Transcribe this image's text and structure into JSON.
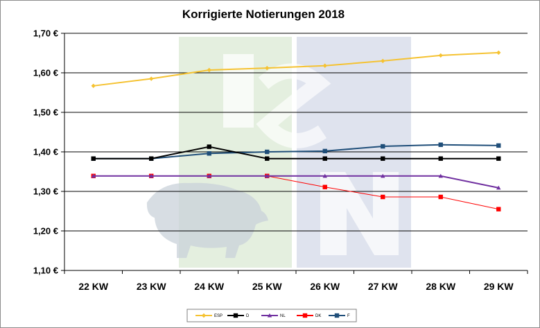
{
  "chart_data": {
    "type": "line",
    "title": "Korrigierte Notierungen 2018",
    "xlabel": "",
    "ylabel": "",
    "categories": [
      "22 KW",
      "23 KW",
      "24 KW",
      "25 KW",
      "26 KW",
      "27 KW",
      "28 KW",
      "29 KW"
    ],
    "y_ticks": [
      "1,10 €",
      "1,20 €",
      "1,30 €",
      "1,40 €",
      "1,50 €",
      "1,60 €",
      "1,70 €"
    ],
    "ylim": [
      1.1,
      1.7
    ],
    "grid": "horizontal",
    "legend_position": "bottom",
    "watermark": "ISN",
    "series": [
      {
        "name": "ESP",
        "color": "#f5c231",
        "marker": "diamond",
        "values": [
          1.567,
          1.585,
          1.607,
          1.612,
          1.618,
          1.63,
          1.644,
          1.651
        ]
      },
      {
        "name": "D",
        "color": "#000000",
        "marker": "square",
        "values": [
          1.383,
          1.383,
          1.413,
          1.383,
          1.383,
          1.383,
          1.383,
          1.383
        ]
      },
      {
        "name": "NL",
        "color": "#7030a0",
        "marker": "triangle",
        "values": [
          1.339,
          1.339,
          1.339,
          1.339,
          1.339,
          1.339,
          1.339,
          1.309
        ]
      },
      {
        "name": "DK",
        "color": "#ff0000",
        "marker": "square",
        "values": [
          1.339,
          1.339,
          1.339,
          1.339,
          1.311,
          1.286,
          1.286,
          1.255
        ]
      },
      {
        "name": "F",
        "color": "#1f4e79",
        "marker": "square",
        "values": [
          1.383,
          1.383,
          1.396,
          1.4,
          1.402,
          1.414,
          1.418,
          1.416
        ]
      }
    ]
  }
}
